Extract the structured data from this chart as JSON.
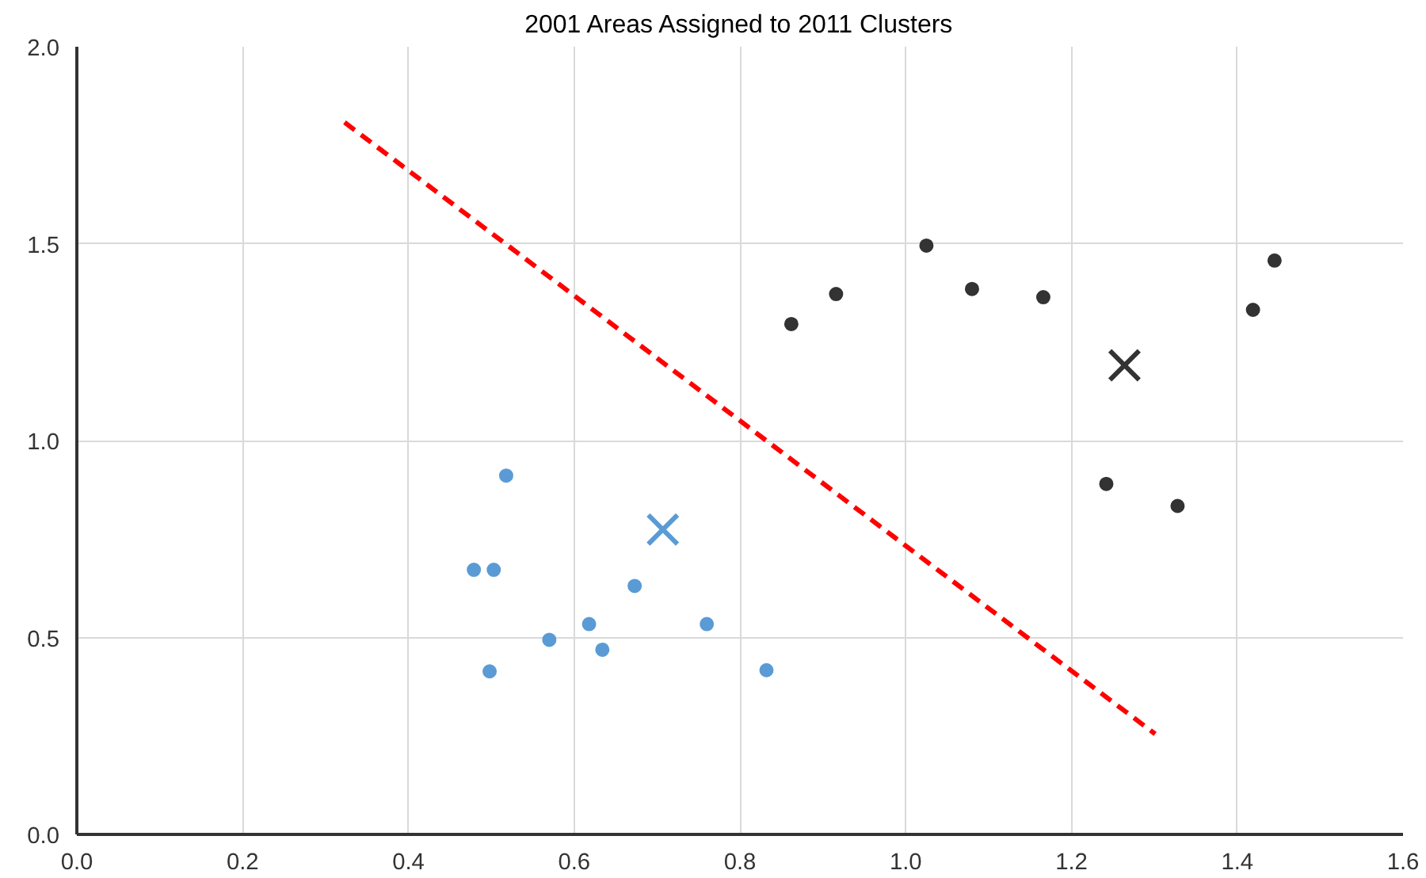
{
  "chart_data": {
    "type": "scatter",
    "title": "2001 Areas Assigned to 2011 Clusters",
    "xlim": [
      0,
      1.6
    ],
    "ylim": [
      0,
      2.0
    ],
    "xticks": [
      {
        "value": 0,
        "label": "0.0"
      },
      {
        "value": 0.2,
        "label": "0.2"
      },
      {
        "value": 0.4,
        "label": "0.4"
      },
      {
        "value": 0.6,
        "label": "0.6"
      },
      {
        "value": 0.8,
        "label": "0.8"
      },
      {
        "value": 1.0,
        "label": "1.0"
      },
      {
        "value": 1.2,
        "label": "1.2"
      },
      {
        "value": 1.4,
        "label": "1.4"
      },
      {
        "value": 1.6,
        "label": "1.6"
      }
    ],
    "yticks": [
      {
        "value": 0,
        "label": "0.0"
      },
      {
        "value": 0.5,
        "label": "0.5"
      },
      {
        "value": 1.0,
        "label": "1.0"
      },
      {
        "value": 1.5,
        "label": "1.5"
      },
      {
        "value": 2.0,
        "label": "2.0"
      }
    ],
    "grid": true,
    "marker": "circle",
    "series": [
      {
        "color": "#5b9bd5",
        "x": [
          0.479,
          0.503,
          0.518,
          0.498,
          0.57,
          0.618,
          0.634,
          0.673,
          0.76,
          0.832
        ],
        "values": [
          0.672,
          0.672,
          0.911,
          0.414,
          0.494,
          0.534,
          0.469,
          0.631,
          0.534,
          0.417
        ]
      },
      {
        "color": "#333333",
        "x": [
          0.862,
          0.916,
          1.025,
          1.08,
          1.166,
          1.419,
          1.445,
          1.242,
          1.328
        ],
        "values": [
          1.296,
          1.372,
          1.495,
          1.385,
          1.364,
          1.332,
          1.457,
          0.89,
          0.834
        ]
      },
      {
        "color": "#5b9bd5",
        "marker": "cross",
        "x": [
          0.707
        ],
        "values": [
          0.774
        ]
      },
      {
        "color": "#333333",
        "marker": "cross",
        "x": [
          1.264
        ],
        "values": [
          1.191
        ]
      },
      {
        "type": "line",
        "color": "#ff0000",
        "line_style": "dashed",
        "marker": "none",
        "x": [
          0.323,
          1.301
        ],
        "values": [
          1.808,
          0.255
        ]
      }
    ]
  }
}
